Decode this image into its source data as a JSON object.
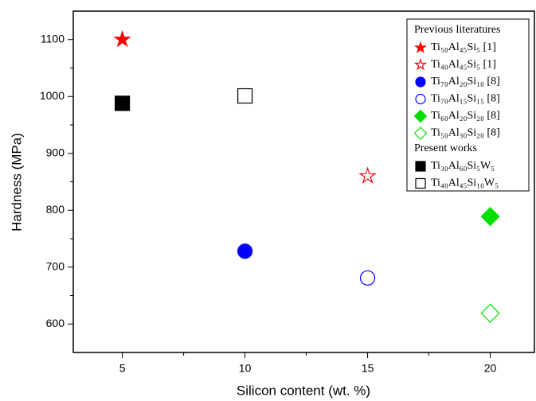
{
  "chart_data": {
    "type": "scatter",
    "xlabel": "Silicon content (wt. %)",
    "ylabel": "Hardness (MPa)",
    "xlim": [
      3,
      21.8
    ],
    "xticks": [
      5,
      10,
      15,
      20
    ],
    "ylim": [
      550,
      1150
    ],
    "yticks": [
      600,
      700,
      800,
      900,
      1000,
      1100
    ],
    "grid": false,
    "legend_position": "upper right",
    "legend_groups": [
      "Previous literatures",
      "Present works"
    ],
    "series": [
      {
        "name": "Ti₅₀Al₄₅Si₅ [1]",
        "color": "#ff0000",
        "marker": "star",
        "filled": true,
        "group": 0,
        "x": [
          5
        ],
        "values": [
          1100
        ]
      },
      {
        "name": "Ti₄₀Al₄₅Si₅ [1]",
        "color": "#ff0000",
        "marker": "star",
        "filled": false,
        "group": 0,
        "x": [
          15
        ],
        "values": [
          860
        ]
      },
      {
        "name": "Ti₇₀Al₂₀Si₁₀ [8]",
        "color": "#0000ff",
        "marker": "circle",
        "filled": true,
        "group": 0,
        "x": [
          10
        ],
        "values": [
          728
        ]
      },
      {
        "name": "Ti₇₀Al₁₅Si₁₅ [8]",
        "color": "#0000ff",
        "marker": "circle",
        "filled": false,
        "group": 0,
        "x": [
          15
        ],
        "values": [
          681
        ]
      },
      {
        "name": "Ti₆₀Al₂₀Si₂₀ [8]",
        "color": "#00e000",
        "marker": "diamond",
        "filled": true,
        "group": 0,
        "x": [
          20
        ],
        "values": [
          789
        ]
      },
      {
        "name": "Ti₅₀Al₃₀Si₂₀ [8]",
        "color": "#00e000",
        "marker": "diamond",
        "filled": false,
        "group": 0,
        "x": [
          20
        ],
        "values": [
          619
        ]
      },
      {
        "name": "Ti₃₀Al₆₀Si₅W₅",
        "color": "#000000",
        "marker": "square",
        "filled": true,
        "group": 1,
        "x": [
          5
        ],
        "values": [
          988
        ]
      },
      {
        "name": "Ti₄₀Al₄₅Si₁₀W₅",
        "color": "#000000",
        "marker": "square",
        "filled": false,
        "group": 1,
        "x": [
          10
        ],
        "values": [
          1001
        ]
      }
    ]
  }
}
